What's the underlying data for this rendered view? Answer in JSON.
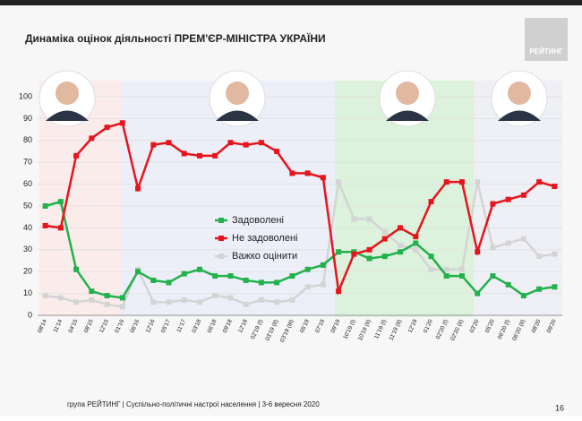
{
  "chart_data": {
    "type": "line",
    "title": "Динаміка оцінок діяльності ПРЕМ'ЄР-МІНІСТРА УКРАЇНИ",
    "logo": "РЕЙТИНГ",
    "footer": "група РЕЙТИНГ | Суспільно-політичні настрої населення | 3-6 вересня 2020",
    "page_number": "16",
    "categories": [
      "08'14",
      "11'14",
      "04'15",
      "08'15",
      "12'15",
      "01'16",
      "06'16",
      "12'16",
      "05'17",
      "11'17",
      "03'18",
      "06'18",
      "09'18",
      "12'18",
      "02'19 (I)",
      "03'19 (II)",
      "03'19 (III)",
      "05'19",
      "07'19",
      "09'19",
      "10'19 (I)",
      "10'19 (II)",
      "11'19 (I)",
      "11'19 (II)",
      "12'19",
      "01'20",
      "02'20 (I)",
      "02'20 (II)",
      "03'20",
      "05'20",
      "06'20 (I)",
      "06'20 (II)",
      "08'20",
      "09'20"
    ],
    "series": [
      {
        "name": "Задоволені",
        "color": "#22b14c",
        "values": [
          50,
          52,
          21,
          11,
          9,
          8,
          20,
          16,
          15,
          19,
          21,
          18,
          18,
          16,
          15,
          15,
          18,
          21,
          23,
          29,
          29,
          26,
          27,
          29,
          33,
          27,
          18,
          18,
          10,
          18,
          14,
          9,
          12,
          13
        ]
      },
      {
        "name": "Не задоволені",
        "color": "#e8141c",
        "values": [
          41,
          40,
          73,
          81,
          86,
          88,
          58,
          78,
          79,
          74,
          73,
          73,
          79,
          78,
          79,
          75,
          65,
          65,
          63,
          11,
          28,
          30,
          35,
          40,
          36,
          52,
          61,
          61,
          29,
          51,
          53,
          55,
          61,
          59
        ]
      },
      {
        "name": "Важко оцінити",
        "color": "#d4d4d4",
        "values": [
          9,
          8,
          6,
          7,
          5,
          4,
          21,
          6,
          6,
          7,
          6,
          9,
          8,
          5,
          7,
          6,
          7,
          13,
          14,
          61,
          44,
          44,
          38,
          32,
          30,
          21,
          21,
          21,
          61,
          31,
          33,
          35,
          27,
          28
        ]
      }
    ],
    "ylim": [
      0,
      100
    ],
    "yticks": [
      0,
      10,
      20,
      30,
      40,
      50,
      60,
      70,
      80,
      90,
      100
    ],
    "grid": true
  }
}
